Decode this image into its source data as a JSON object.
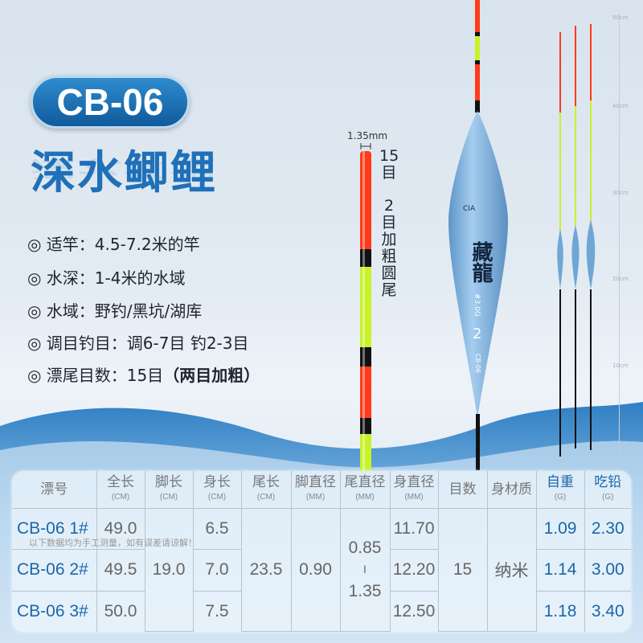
{
  "title": "CB-06",
  "subtitle": "深水鲫鲤",
  "specs": [
    "◎ 适竿：4.5-7.2米的竿",
    "◎ 水深：1-4米的水域",
    "◎ 水域：野钓/黑坑/湖库",
    "◎ 调目钓目：调6-7目 钓2-3目"
  ],
  "spec5": {
    "text": "◎ 漂尾目数：15目",
    "bold": "（两目加粗）"
  },
  "tail_callout": {
    "diameter": "1.35mm",
    "marks": "15目",
    "thick": "2目加粗圆尾"
  },
  "float_body": {
    "brand": "藏龍",
    "weight": "#3.0G",
    "number": "2",
    "model": "CB-06"
  },
  "ruler": [
    "50cm",
    "40cm",
    "30cm",
    "20cm",
    "10cm"
  ],
  "table": {
    "headers": [
      {
        "label": "漂号"
      },
      {
        "label": "全长",
        "unit": "(CM)"
      },
      {
        "label": "脚长",
        "unit": "(CM)"
      },
      {
        "label": "身长",
        "unit": "(CM)"
      },
      {
        "label": "尾长",
        "unit": "(CM)"
      },
      {
        "label": "脚直径",
        "unit": "(MM)"
      },
      {
        "label": "尾直径",
        "unit": "(MM)"
      },
      {
        "label": "身直径",
        "unit": "(MM)"
      },
      {
        "label": "目数"
      },
      {
        "label": "身材质"
      },
      {
        "label": "自重",
        "unit": "(G)"
      },
      {
        "label": "吃铅",
        "unit": "(G)"
      }
    ],
    "rows": [
      {
        "name": "CB-06 1#",
        "total": "49.0",
        "body": "6.5",
        "body_d": "11.70",
        "weight": "1.09",
        "lead": "2.30"
      },
      {
        "name": "CB-06 2#",
        "total": "49.5",
        "body": "7.0",
        "body_d": "12.20",
        "weight": "1.14",
        "lead": "3.00"
      },
      {
        "name": "CB-06 3#",
        "total": "50.0",
        "body": "7.5",
        "body_d": "12.50",
        "weight": "1.18",
        "lead": "3.40"
      }
    ],
    "shared": {
      "foot": "19.0",
      "tail": "23.5",
      "foot_d": "0.90",
      "tail_d_top": "0.85",
      "tail_d_sep": "I",
      "tail_d_bottom": "1.35",
      "marks": "15",
      "material": "纳米"
    },
    "note": "以下数据均为手工测量，如有误差请谅解！"
  },
  "colors": {
    "accent": "#1f70b8",
    "tail_red": "#ff3b1a",
    "tail_yellow": "#c8f22a",
    "body": "#7fb2de"
  }
}
